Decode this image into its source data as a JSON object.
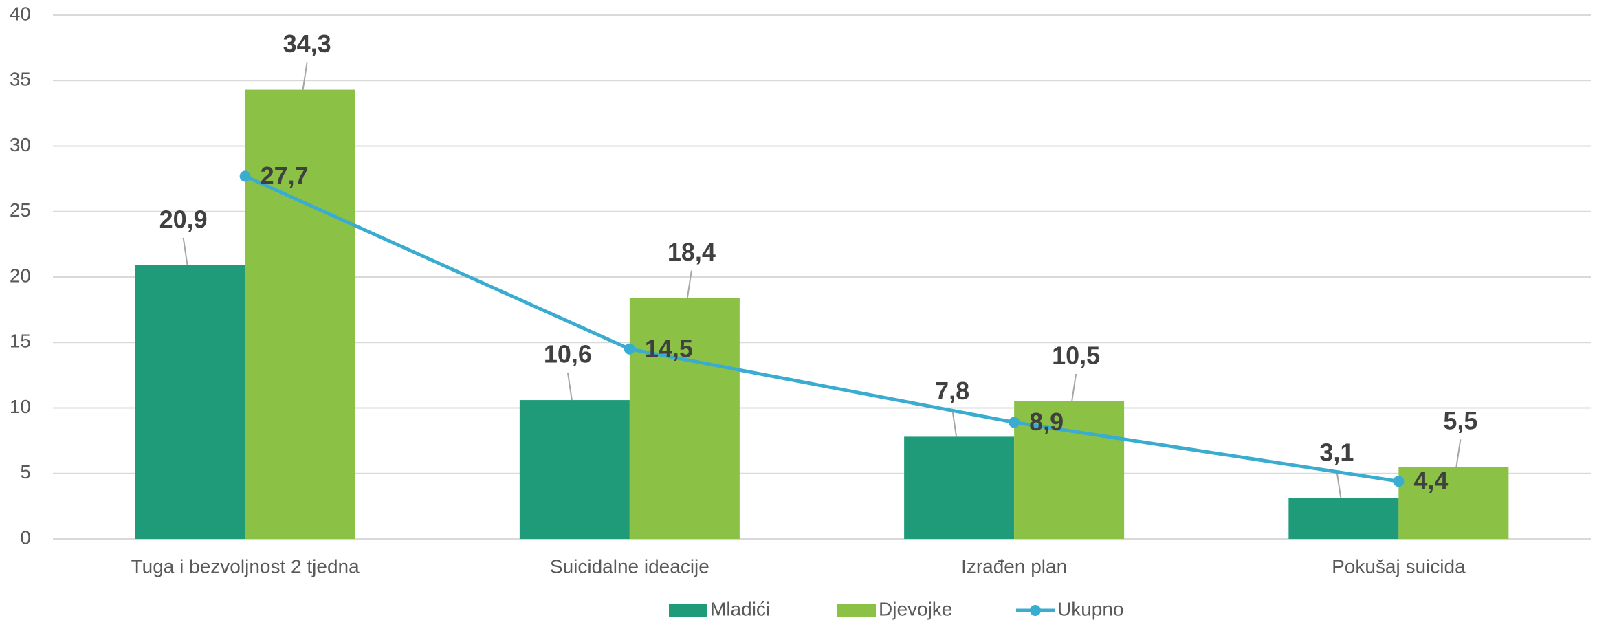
{
  "chart_data": {
    "type": "bar_line",
    "categories": [
      "Tuga i bezvoljnost 2 tjedna",
      "Suicidalne ideacije",
      "Izrađen plan",
      "Pokušaj suicida"
    ],
    "series": [
      {
        "name": "Mladići",
        "type": "bar",
        "color": "#1f9b7a",
        "values": [
          20.9,
          10.6,
          7.8,
          3.1
        ],
        "value_labels": [
          "20,9",
          "10,6",
          "7,8",
          "3,1"
        ]
      },
      {
        "name": "Djevojke",
        "type": "bar",
        "color": "#8bc145",
        "values": [
          34.3,
          18.4,
          10.5,
          5.5
        ],
        "value_labels": [
          "34,3",
          "18,4",
          "10,5",
          "5,5"
        ]
      },
      {
        "name": "Ukupno",
        "type": "line",
        "color": "#3aaccf",
        "values": [
          27.7,
          14.5,
          8.9,
          4.4
        ],
        "value_labels": [
          "27,7",
          "14,5",
          "8,9",
          "4,4"
        ]
      }
    ],
    "ylim": [
      0,
      40
    ],
    "yticks": [
      0,
      5,
      10,
      15,
      20,
      25,
      30,
      35,
      40
    ],
    "grid": true,
    "legend": "bottom"
  }
}
